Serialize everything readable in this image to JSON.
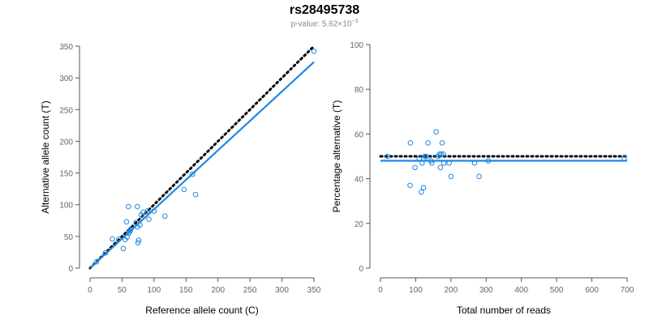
{
  "title": "rs28495738",
  "subtitle": {
    "prefix": "p-value: 5.62×10",
    "exponent": "−3"
  },
  "chart_data": [
    {
      "type": "scatter",
      "xlabel": "Reference allele count (C)",
      "ylabel": "Alternative allele count (T)",
      "xlim": [
        0,
        350
      ],
      "ylim": [
        0,
        350
      ],
      "xticks": [
        0,
        50,
        100,
        150,
        200,
        250,
        300,
        350
      ],
      "yticks": [
        0,
        50,
        100,
        150,
        200,
        250,
        300,
        350
      ],
      "grid": false,
      "point_color": "#1e88e5",
      "points": [
        [
          10,
          10
        ],
        [
          24,
          24
        ],
        [
          35,
          46
        ],
        [
          45,
          46
        ],
        [
          52,
          31
        ],
        [
          55,
          45
        ],
        [
          57,
          73
        ],
        [
          58,
          49
        ],
        [
          60,
          97
        ],
        [
          60,
          55
        ],
        [
          63,
          60
        ],
        [
          62,
          57
        ],
        [
          64,
          62
        ],
        [
          72,
          72
        ],
        [
          74,
          97
        ],
        [
          74,
          65
        ],
        [
          75,
          40
        ],
        [
          76,
          44
        ],
        [
          78,
          68
        ],
        [
          80,
          84
        ],
        [
          83,
          88
        ],
        [
          90,
          90
        ],
        [
          92,
          77
        ],
        [
          100,
          90
        ],
        [
          117,
          82
        ],
        [
          147,
          124
        ],
        [
          160,
          148
        ],
        [
          165,
          116
        ],
        [
          350,
          342
        ]
      ],
      "fit_line": {
        "color": "#1e88e5",
        "x": [
          0,
          350
        ],
        "y": [
          0,
          325
        ]
      },
      "reference_line": {
        "color": "#000000",
        "style": "dotted",
        "x": [
          0,
          350
        ],
        "y": [
          0,
          350
        ]
      }
    },
    {
      "type": "scatter",
      "xlabel": "Total number of reads",
      "ylabel": "Percentage alternative (T)",
      "xlim": [
        0,
        700
      ],
      "ylim": [
        0,
        100
      ],
      "xticks": [
        0,
        100,
        200,
        300,
        400,
        500,
        600,
        700
      ],
      "yticks": [
        0,
        20,
        40,
        60,
        80,
        100
      ],
      "grid": false,
      "point_color": "#1e88e5",
      "points": [
        [
          20,
          50
        ],
        [
          84,
          37
        ],
        [
          85,
          56
        ],
        [
          98,
          45
        ],
        [
          110,
          49
        ],
        [
          116,
          34
        ],
        [
          118,
          47
        ],
        [
          122,
          36
        ],
        [
          123,
          49
        ],
        [
          126,
          50
        ],
        [
          130,
          50
        ],
        [
          135,
          56
        ],
        [
          143,
          48
        ],
        [
          146,
          47
        ],
        [
          158,
          61
        ],
        [
          163,
          50
        ],
        [
          168,
          51
        ],
        [
          170,
          45
        ],
        [
          172,
          51
        ],
        [
          175,
          56
        ],
        [
          178,
          51
        ],
        [
          180,
          47
        ],
        [
          195,
          47
        ],
        [
          200,
          41
        ],
        [
          267,
          47
        ],
        [
          280,
          41
        ],
        [
          306,
          48
        ],
        [
          692,
          49
        ]
      ],
      "fit_line": {
        "color": "#1e88e5",
        "x": [
          0,
          700
        ],
        "y": [
          48,
          48
        ]
      },
      "reference_line": {
        "color": "#000000",
        "style": "dotted",
        "x": [
          0,
          700
        ],
        "y": [
          50,
          50
        ]
      }
    }
  ]
}
